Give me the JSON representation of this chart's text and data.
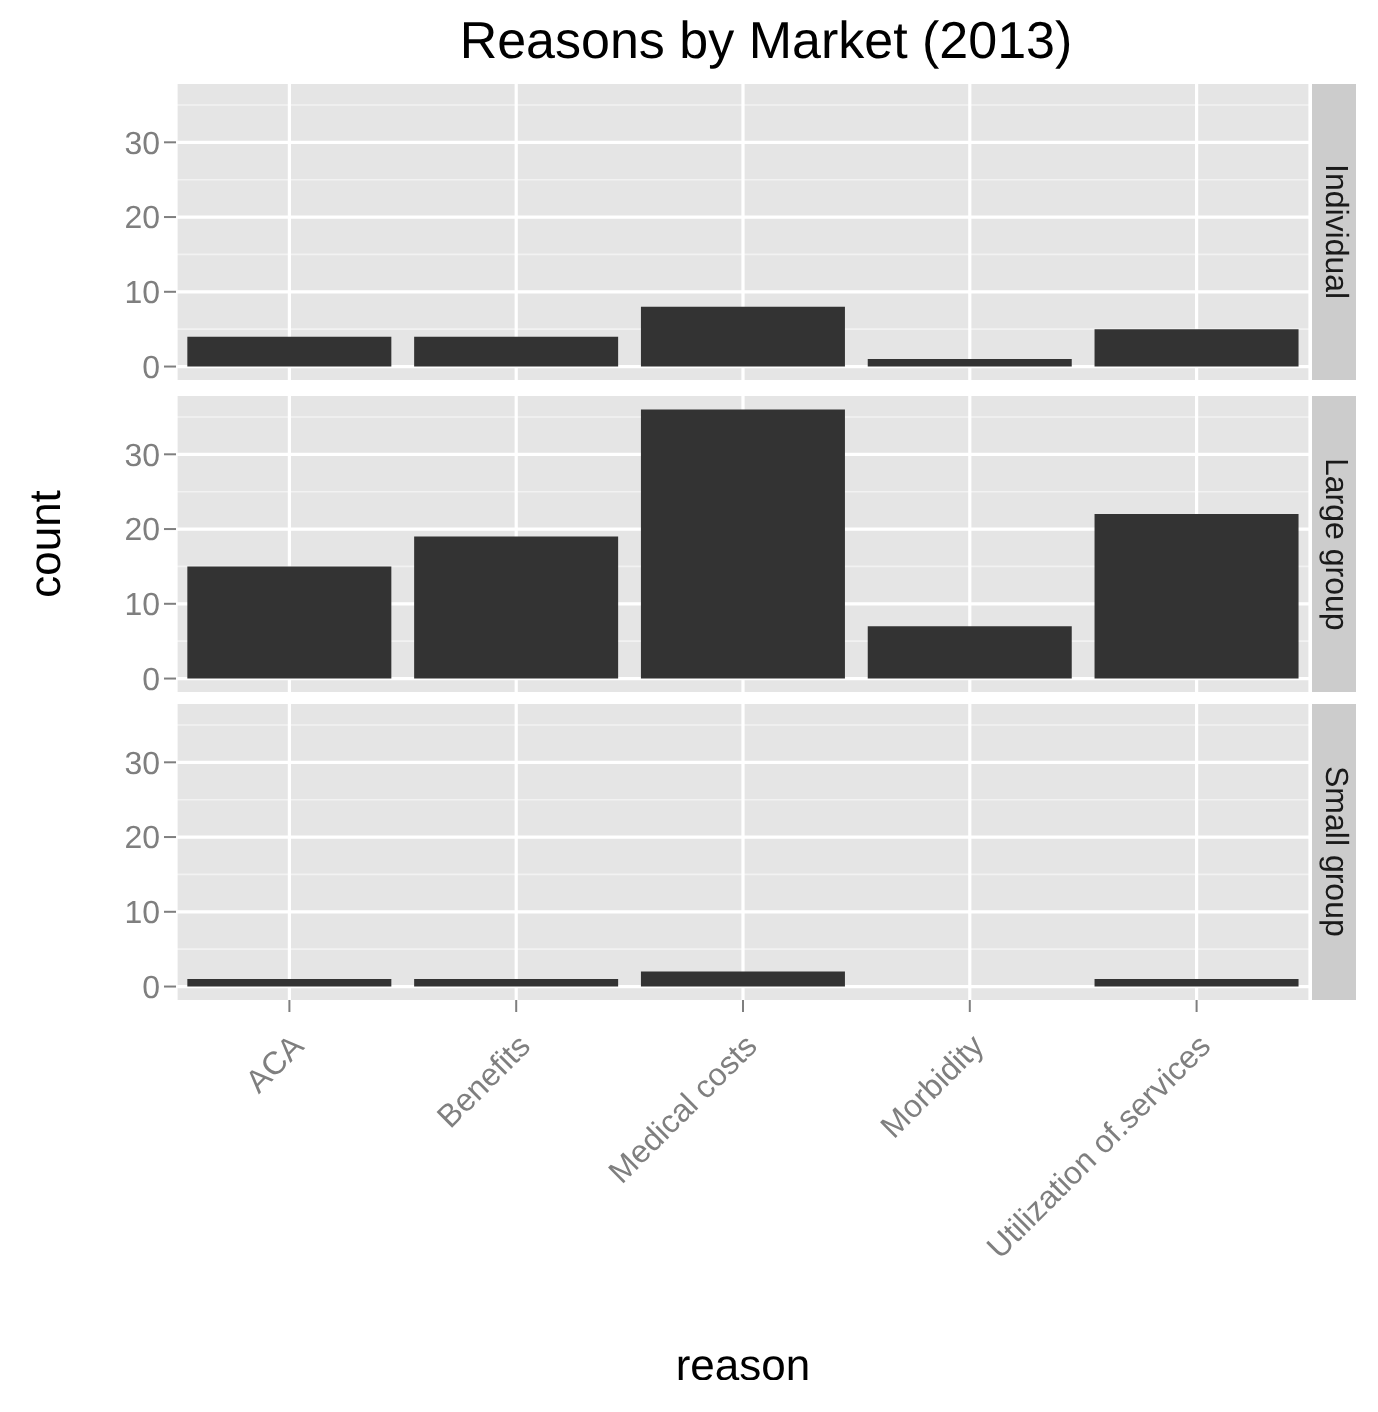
{
  "chart_data": [
    {
      "type": "bar",
      "title": "Reasons by Market (2013)",
      "series": [
        {
          "name": "Individual",
          "color": "#333333",
          "values": [
            4,
            4,
            8,
            1,
            5
          ]
        }
      ],
      "ylim": [
        -1.8,
        37.8
      ],
      "yticks": [
        0,
        10,
        20,
        30
      ],
      "grid": true,
      "tick_labels": "y"
    },
    {
      "type": "bar",
      "ylabel": "count",
      "series": [
        {
          "name": "Large group",
          "color": "#333333",
          "values": [
            15,
            19,
            36,
            7,
            22
          ]
        }
      ],
      "ylim": [
        -1.8,
        37.8
      ],
      "yticks": [
        0,
        10,
        20,
        30
      ],
      "grid": true,
      "tick_labels": "y"
    },
    {
      "type": "bar",
      "xlabel": "reason",
      "categories": [
        "ACA",
        "Benefits",
        "Medical costs",
        "Morbidity",
        "Utilization of.services"
      ],
      "series": [
        {
          "name": "Small group",
          "color": "#333333",
          "values": [
            1,
            1,
            2,
            null,
            1
          ]
        }
      ],
      "ylim": [
        -1.8,
        37.8
      ],
      "yticks": [
        0,
        10,
        20,
        30
      ],
      "grid": true
    }
  ]
}
